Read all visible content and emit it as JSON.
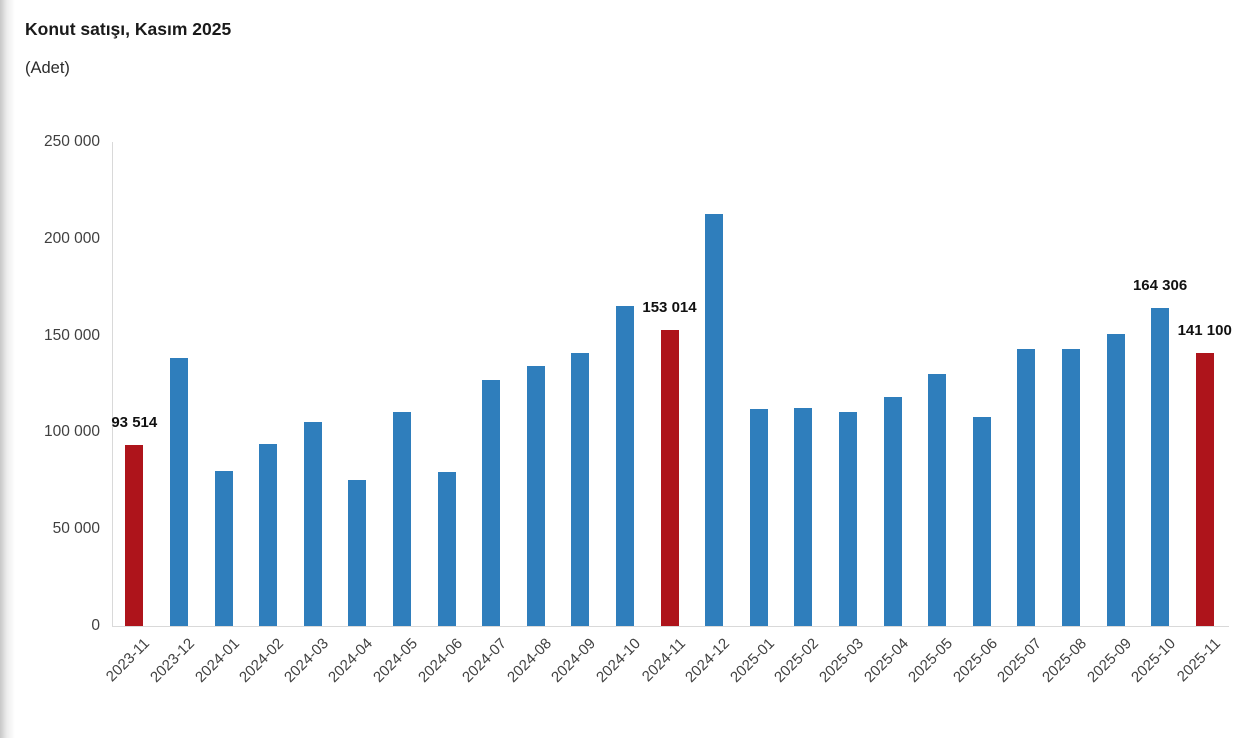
{
  "chart": {
    "title": "Konut satışı, Kasım 2025",
    "subtitle": "(Adet)"
  },
  "chart_data": {
    "type": "bar",
    "title": "Konut satışı, Kasım 2025",
    "subtitle": "(Adet)",
    "ylabel_unit": "Adet",
    "categories": [
      "2023-11",
      "2023-12",
      "2024-01",
      "2024-02",
      "2024-03",
      "2024-04",
      "2024-05",
      "2024-06",
      "2024-07",
      "2024-08",
      "2024-09",
      "2024-10",
      "2024-11",
      "2024-12",
      "2025-01",
      "2025-02",
      "2025-03",
      "2025-04",
      "2025-05",
      "2025-06",
      "2025-07",
      "2025-08",
      "2025-09",
      "2025-10",
      "2025-11"
    ],
    "values": [
      93514,
      138577,
      80308,
      93902,
      105476,
      75569,
      110588,
      79313,
      127088,
      134155,
      140919,
      165138,
      153014,
      212637,
      112173,
      112818,
      110795,
      118359,
      130025,
      107723,
      142858,
      143319,
      150738,
      164306,
      141100
    ],
    "highlighted_categories": [
      "2023-11",
      "2024-11",
      "2025-11"
    ],
    "data_labels": [
      {
        "category": "2023-11",
        "text": "93 514"
      },
      {
        "category": "2024-11",
        "text": "153 014"
      },
      {
        "category": "2025-10",
        "text": "164 306"
      },
      {
        "category": "2025-11",
        "text": "141 100"
      }
    ],
    "y_ticks": [
      "0",
      "50 000",
      "100 000",
      "150 000",
      "200 000",
      "250 000"
    ],
    "ylim": [
      0,
      250000
    ],
    "grid": false,
    "legend": false,
    "colors": {
      "bar": "#2F7EBC",
      "highlight": "#AE141B"
    }
  }
}
